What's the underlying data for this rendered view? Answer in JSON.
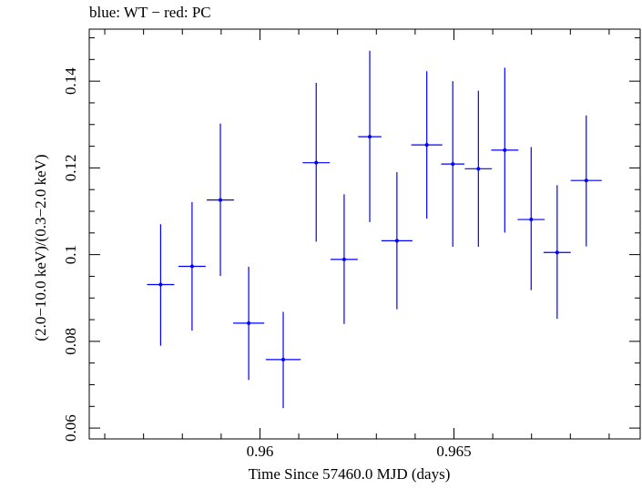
{
  "chart_data": {
    "type": "scatter",
    "title": "blue: WT − red: PC",
    "xlabel": "Time Since 57460.0 MJD (days)",
    "ylabel": "(2.0−10.0 keV)/(0.3−2.0 keV)",
    "xlim": [
      0.9556,
      0.9698
    ],
    "ylim": [
      0.0575,
      0.152
    ],
    "xticks": [
      0.96,
      0.965
    ],
    "xtick_labels": [
      "0.96",
      "0.965"
    ],
    "yticks": [
      0.06,
      0.08,
      0.1,
      0.12,
      0.14
    ],
    "ytick_labels": [
      "0.06",
      "0.08",
      "0.1",
      "0.12",
      "0.14"
    ],
    "grid": false,
    "series": [
      {
        "color": "#0000ff",
        "points": [
          {
            "x": 0.95744,
            "xerr": 0.00035,
            "y": 0.0931,
            "yerr_low": 0.0141,
            "yerr_high": 0.0139
          },
          {
            "x": 0.95825,
            "xerr": 0.00035,
            "y": 0.0973,
            "yerr_low": 0.0148,
            "yerr_high": 0.0148
          },
          {
            "x": 0.95898,
            "xerr": 0.00035,
            "y": 0.1126,
            "yerr_low": 0.0175,
            "yerr_high": 0.0176
          },
          {
            "x": 0.95971,
            "xerr": 0.0004,
            "y": 0.0842,
            "yerr_low": 0.0131,
            "yerr_high": 0.013
          },
          {
            "x": 0.9606,
            "xerr": 0.00045,
            "y": 0.0758,
            "yerr_low": 0.0112,
            "yerr_high": 0.011
          },
          {
            "x": 0.96145,
            "xerr": 0.00035,
            "y": 0.1212,
            "yerr_low": 0.0182,
            "yerr_high": 0.0184
          },
          {
            "x": 0.96217,
            "xerr": 0.00035,
            "y": 0.0989,
            "yerr_low": 0.0149,
            "yerr_high": 0.015
          },
          {
            "x": 0.96283,
            "xerr": 0.0003,
            "y": 0.1272,
            "yerr_low": 0.0197,
            "yerr_high": 0.0198
          },
          {
            "x": 0.96353,
            "xerr": 0.0004,
            "y": 0.1032,
            "yerr_low": 0.0158,
            "yerr_high": 0.0158
          },
          {
            "x": 0.9643,
            "xerr": 0.0004,
            "y": 0.1253,
            "yerr_low": 0.017,
            "yerr_high": 0.017
          },
          {
            "x": 0.96497,
            "xerr": 0.0003,
            "y": 0.1209,
            "yerr_low": 0.0191,
            "yerr_high": 0.0191
          },
          {
            "x": 0.96563,
            "xerr": 0.00035,
            "y": 0.1198,
            "yerr_low": 0.018,
            "yerr_high": 0.018
          },
          {
            "x": 0.96631,
            "xerr": 0.00035,
            "y": 0.1241,
            "yerr_low": 0.019,
            "yerr_high": 0.019
          },
          {
            "x": 0.96699,
            "xerr": 0.00035,
            "y": 0.1081,
            "yerr_low": 0.0163,
            "yerr_high": 0.0167
          },
          {
            "x": 0.96766,
            "xerr": 0.00035,
            "y": 0.1005,
            "yerr_low": 0.0153,
            "yerr_high": 0.0155
          },
          {
            "x": 0.96841,
            "xerr": 0.0004,
            "y": 0.1171,
            "yerr_low": 0.0152,
            "yerr_high": 0.015
          }
        ]
      }
    ]
  }
}
